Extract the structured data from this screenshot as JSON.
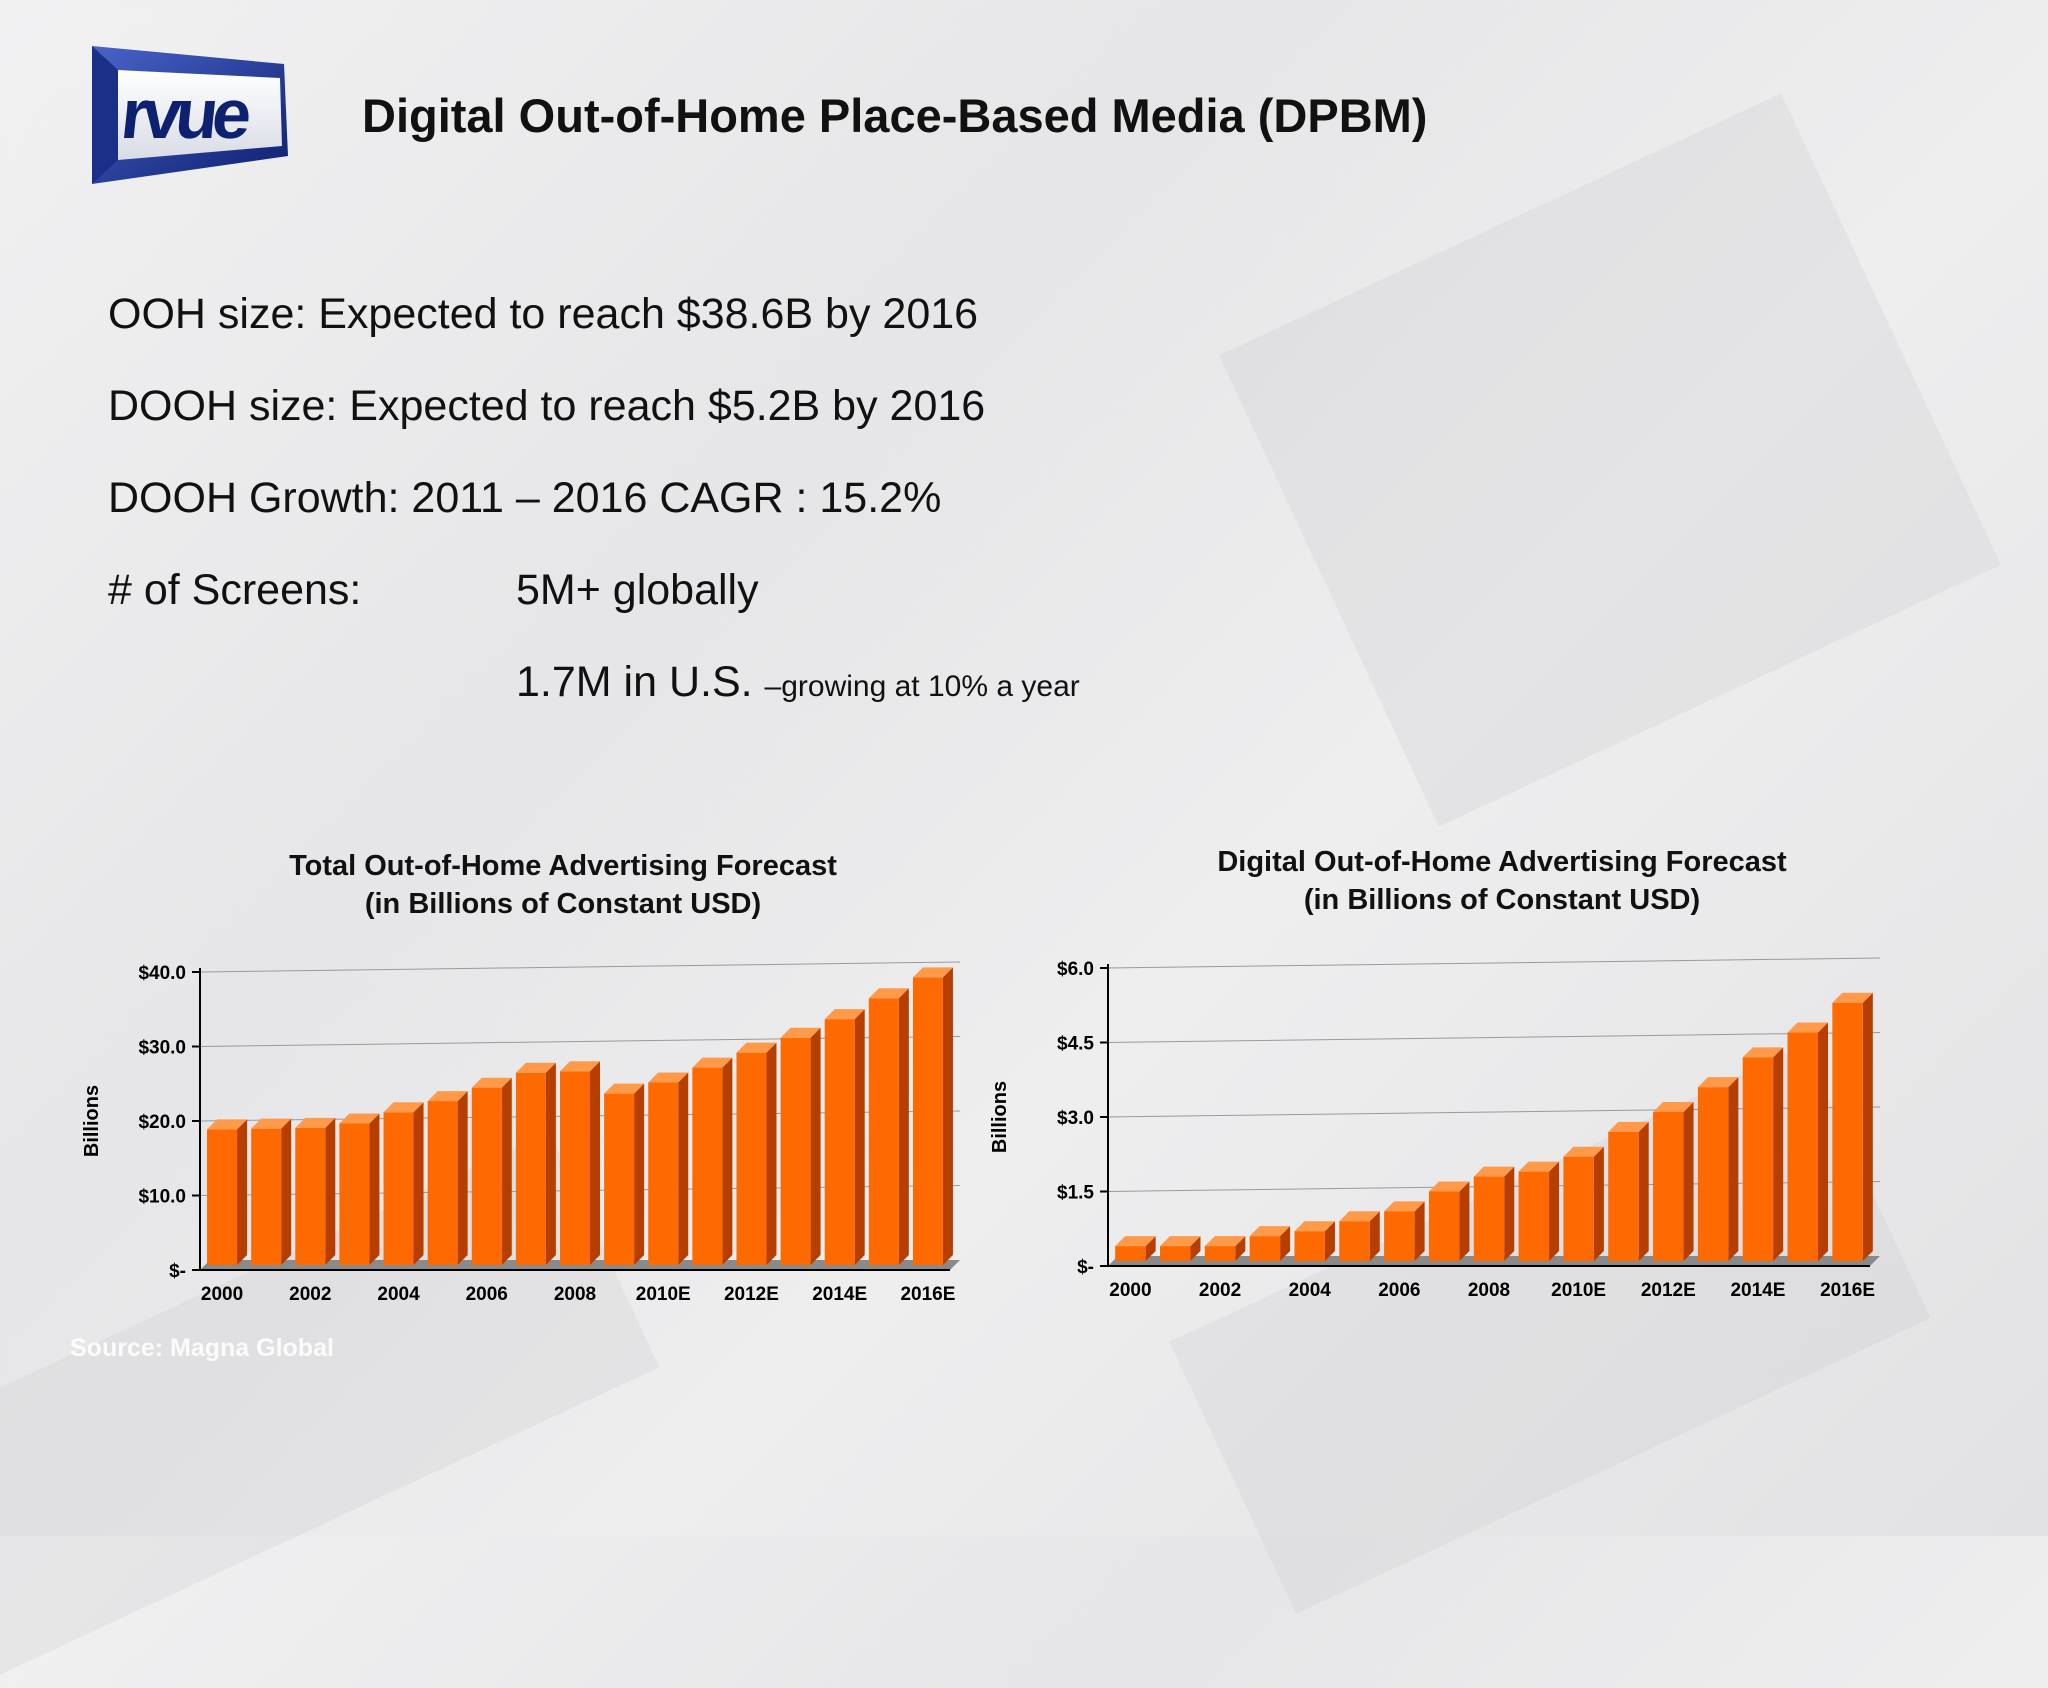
{
  "slide": {
    "logo_text": "rvue",
    "title": "Digital Out-of-Home Place-Based Media (DPBM)",
    "facts": [
      {
        "label": "OOH size:  Expected to reach $38.6B by 2016"
      },
      {
        "label": "DOOH size:  Expected to reach $5.2B by 2016"
      },
      {
        "label": "DOOH Growth:  2011 – 2016 CAGR : 15.2%"
      },
      {
        "label": "# of Screens:",
        "value": "5M+ globally"
      },
      {
        "value": "1.7M in U.S.",
        "note": "–growing at 10% a year"
      }
    ],
    "source": "Source: Magna Global"
  },
  "colors": {
    "bar_front": "#ff6a00",
    "bar_side": "#b63f00",
    "bar_top": "#ff9a4a",
    "floor": "#8a8a8a"
  },
  "chart_data": [
    {
      "type": "bar",
      "title": "Total Out-of-Home Advertising Forecast",
      "subtitle": "(in Billions of Constant USD)",
      "xlabel": "",
      "ylabel": "Billions",
      "categories": [
        "2000",
        "2001",
        "2002",
        "2003",
        "2004",
        "2005",
        "2006",
        "2007",
        "2008",
        "2009",
        "2010E",
        "2011E",
        "2012E",
        "2013E",
        "2014E",
        "2015E",
        "2016E"
      ],
      "x_tick_labels": [
        "2000",
        "2002",
        "2004",
        "2006",
        "2008",
        "2010E",
        "2012E",
        "2014E",
        "2016E"
      ],
      "values": [
        18.2,
        18.3,
        18.4,
        19.0,
        20.5,
        22.0,
        23.8,
        25.8,
        26.0,
        23.0,
        24.5,
        26.5,
        28.5,
        30.5,
        33.0,
        35.8,
        38.6
      ],
      "ylim": [
        0,
        40
      ],
      "y_ticks": [
        0,
        10,
        20,
        30,
        40
      ],
      "y_tick_labels": [
        "$-",
        "$10.0",
        "$20.0",
        "$30.0",
        "$40.0"
      ],
      "grid": true,
      "legend": "none"
    },
    {
      "type": "bar",
      "title": "Digital Out-of-Home Advertising Forecast",
      "subtitle": "(in Billions of Constant USD)",
      "xlabel": "",
      "ylabel": "Billions",
      "categories": [
        "2000",
        "2001",
        "2002",
        "2003",
        "2004",
        "2005",
        "2006",
        "2007",
        "2008",
        "2009",
        "2010E",
        "2011E",
        "2012E",
        "2013E",
        "2014E",
        "2015E",
        "2016E"
      ],
      "x_tick_labels": [
        "2000",
        "2002",
        "2004",
        "2006",
        "2008",
        "2010E",
        "2012E",
        "2014E",
        "2016E"
      ],
      "values": [
        0.3,
        0.3,
        0.3,
        0.5,
        0.6,
        0.8,
        1.0,
        1.4,
        1.7,
        1.8,
        2.1,
        2.6,
        3.0,
        3.5,
        4.1,
        4.6,
        5.2
      ],
      "ylim": [
        0,
        6
      ],
      "y_ticks": [
        0,
        1.5,
        3.0,
        4.5,
        6.0
      ],
      "y_tick_labels": [
        "$-",
        "$1.5",
        "$3.0",
        "$4.5",
        "$6.0"
      ],
      "grid": true,
      "legend": "none"
    }
  ]
}
